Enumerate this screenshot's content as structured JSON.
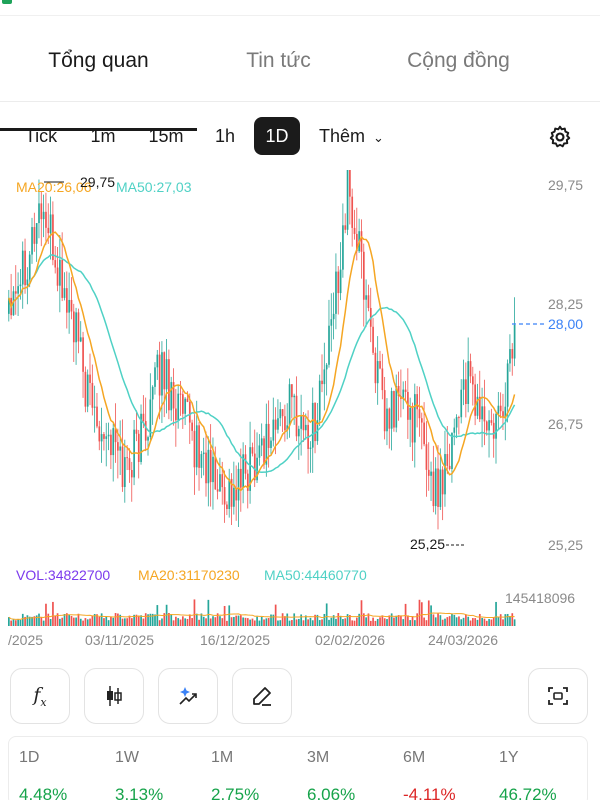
{
  "tabs": [
    {
      "label": "Tổng quan",
      "active": true
    },
    {
      "label": "Tin tức",
      "active": false
    },
    {
      "label": "Cộng đồng",
      "active": false
    }
  ],
  "timeframes": [
    "Tick",
    "1m",
    "15m",
    "1h",
    "1D"
  ],
  "timeframe_active": "1D",
  "timeframe_more": "Thêm",
  "legend": {
    "ma20": "MA20:26,06",
    "ma50": "MA50:27,03"
  },
  "price_axis": [
    "29,75",
    "28,25",
    "26,75",
    "25,25"
  ],
  "current_price": "28,00",
  "high_marker": "29,75",
  "low_marker": "25,25",
  "volume_legend": {
    "vol": "VOL:34822700",
    "ma20": "MA20:31170230",
    "ma50": "MA50:44460770"
  },
  "volume_axis_max": "145418096",
  "date_axis": [
    "/2025",
    "03/11/2025",
    "16/12/2025",
    "02/02/2026",
    "24/03/2026"
  ],
  "tools": [
    "fx-icon",
    "candles-icon",
    "sparkle-drawing-icon",
    "pen-icon",
    "screenshot-icon"
  ],
  "performance": [
    {
      "period": "1D",
      "change": "4.48%",
      "dir": "up"
    },
    {
      "period": "1W",
      "change": "3.13%",
      "dir": "up"
    },
    {
      "period": "1M",
      "change": "2.75%",
      "dir": "up"
    },
    {
      "period": "3M",
      "change": "6.06%",
      "dir": "up"
    },
    {
      "period": "6M",
      "change": "-4.11%",
      "dir": "down"
    },
    {
      "period": "1Y",
      "change": "46.72%",
      "dir": "up"
    }
  ],
  "colors": {
    "up": "#26a69a",
    "down": "#ef5350",
    "ma20": "#f5a623",
    "ma50": "#4fd1c5",
    "vol_label": "#7c3aed",
    "price_line": "#3b82f6"
  },
  "chart_data": {
    "type": "candlestick",
    "ylim": [
      24.75,
      30.0
    ],
    "x": [
      "03/11/2025",
      "16/12/2025",
      "02/02/2026",
      "24/03/2026"
    ],
    "last_close": 28.0,
    "period_high": 29.75,
    "period_low": 25.25
  }
}
